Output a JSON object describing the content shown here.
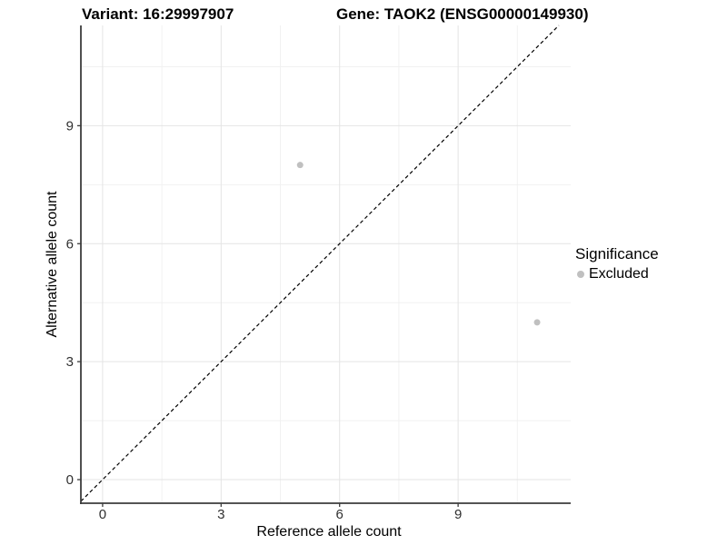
{
  "chart_data": {
    "type": "scatter",
    "title_left": "Variant: 16:29997907",
    "title_right": "Gene: TAOK2 (ENSG00000149930)",
    "xlabel": "Reference allele count",
    "ylabel": "Alternative allele count",
    "x_ticks": [
      0,
      3,
      6,
      9
    ],
    "y_ticks": [
      0,
      3,
      6,
      9
    ],
    "x_minor_ticks": [
      1.5,
      4.5,
      7.5,
      10.5
    ],
    "y_minor_ticks": [
      1.5,
      4.5,
      7.5,
      10.5
    ],
    "xlim": [
      -0.55,
      11.85
    ],
    "ylim": [
      -0.6,
      11.55
    ],
    "grid": true,
    "identity_line": {
      "slope": 1,
      "intercept": 0,
      "style": "dashed",
      "color": "#000000"
    },
    "series": [
      {
        "name": "Excluded",
        "color": "#c0c0c0",
        "points": [
          {
            "x": 5,
            "y": 8
          },
          {
            "x": 11,
            "y": 4
          }
        ]
      }
    ],
    "legend": {
      "title": "Significance",
      "position": "right",
      "items": [
        {
          "label": "Excluded",
          "color": "#c0c0c0",
          "marker": "circle-icon"
        }
      ]
    },
    "colors": {
      "grid_major": "#e4e4e4",
      "grid_minor": "#f1f1f1",
      "axis_line": "#3c3c3c",
      "tick_mark": "#3c3c3c",
      "tick_text": "#303030",
      "background": "#ffffff"
    }
  }
}
